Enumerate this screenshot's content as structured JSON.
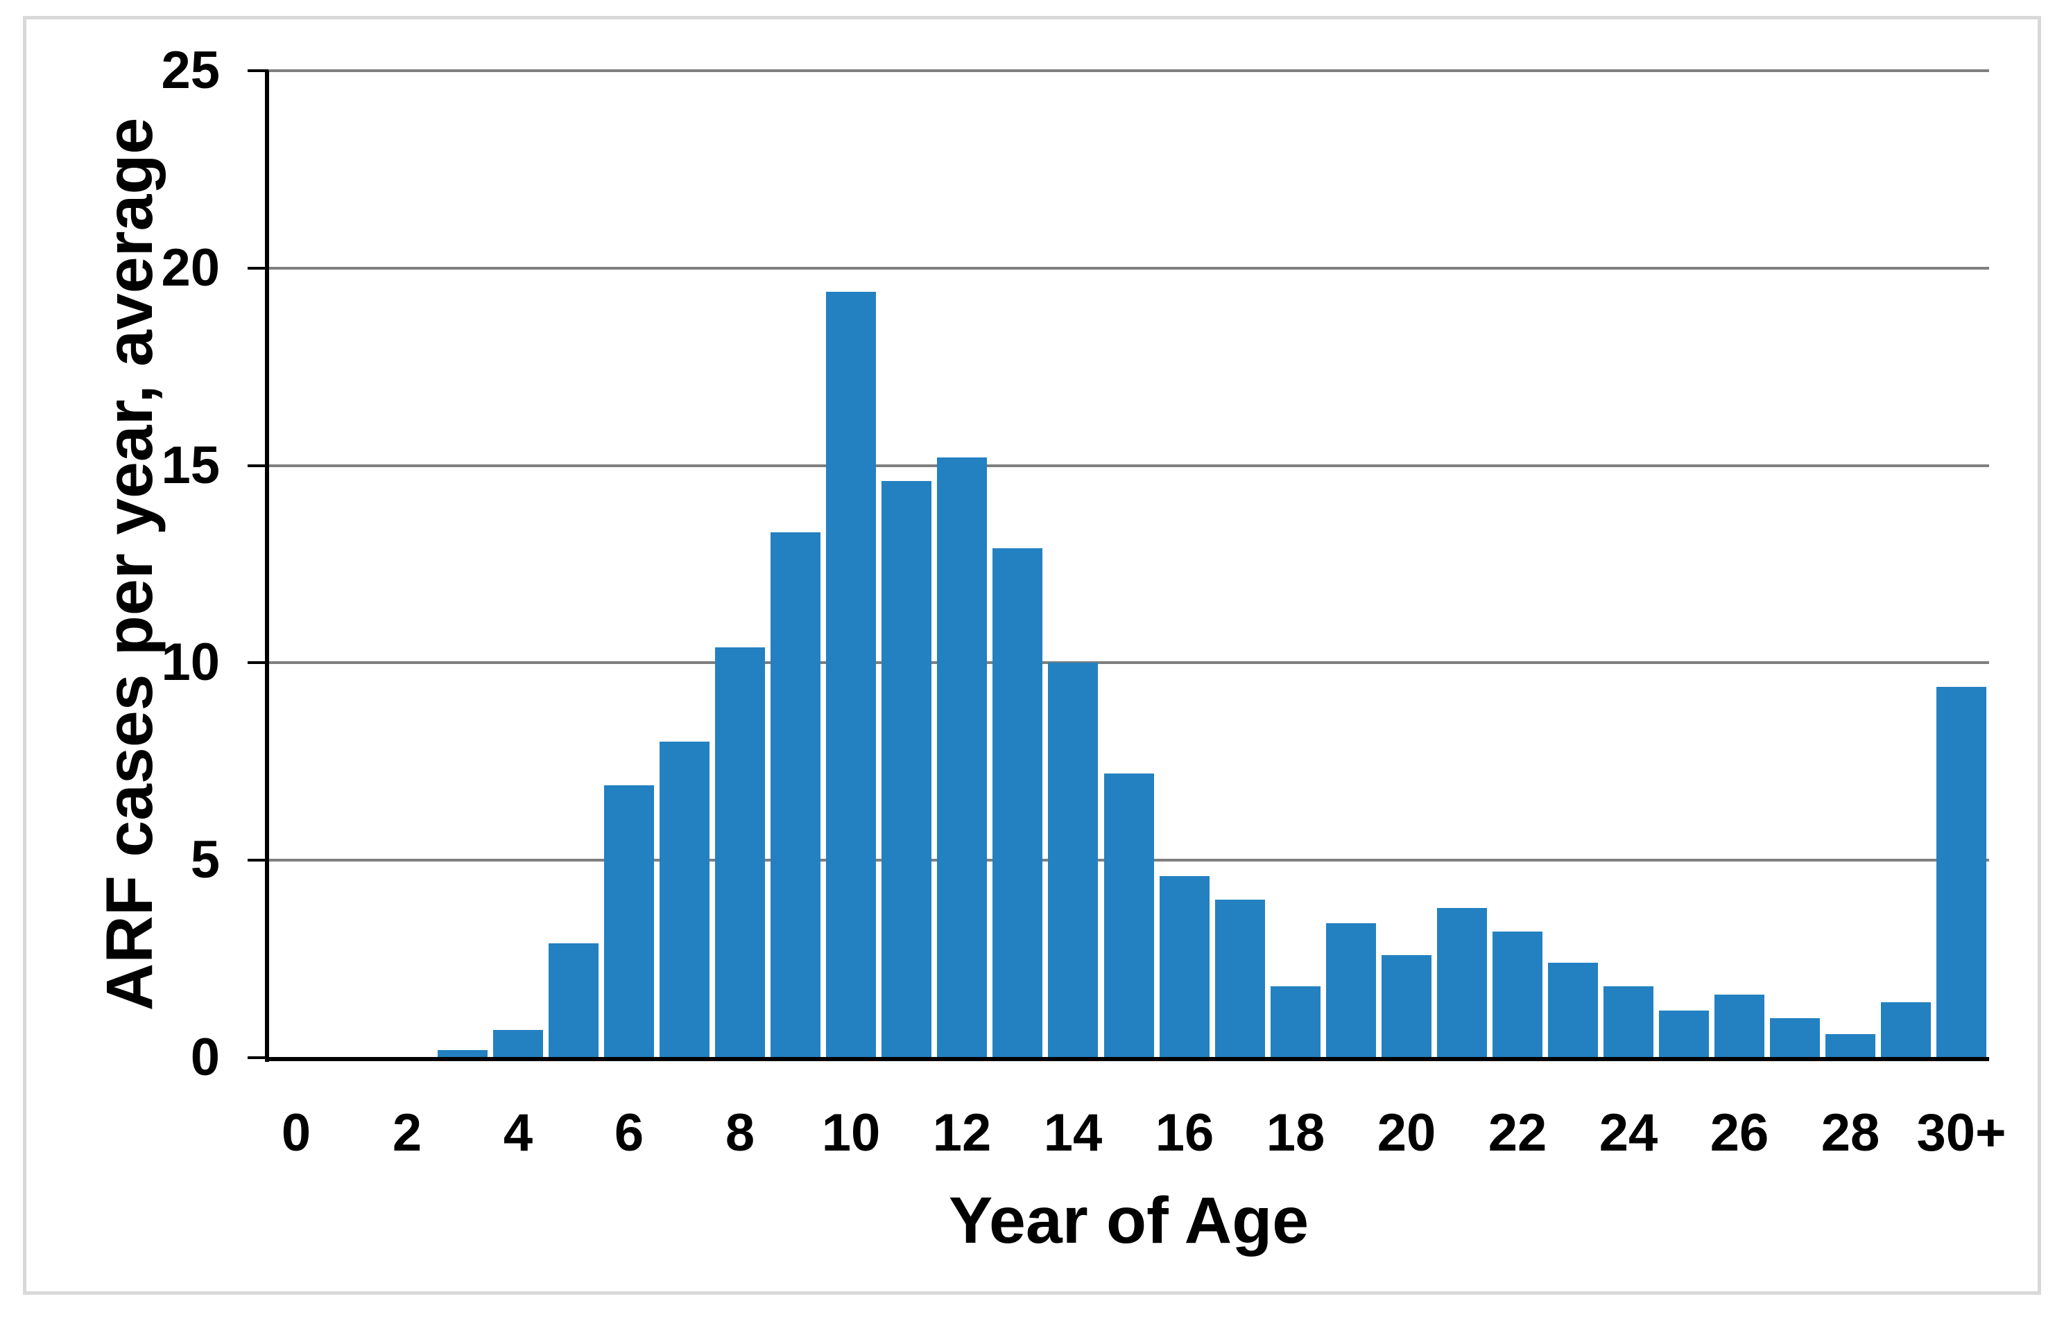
{
  "figure": {
    "background_color": "#ffffff",
    "border_color": "#d9d9d9"
  },
  "chart_data": {
    "type": "bar",
    "title": "",
    "xlabel": "Year of Age",
    "ylabel": "ARF cases per year, average",
    "categories": [
      "0",
      "1",
      "2",
      "3",
      "4",
      "5",
      "6",
      "7",
      "8",
      "9",
      "10",
      "11",
      "12",
      "13",
      "14",
      "15",
      "16",
      "17",
      "18",
      "19",
      "20",
      "21",
      "22",
      "23",
      "24",
      "25",
      "26",
      "27",
      "28",
      "29",
      "30+"
    ],
    "values": [
      0,
      0,
      0,
      0.2,
      0.7,
      2.9,
      6.9,
      8.0,
      10.4,
      13.3,
      19.4,
      14.6,
      15.2,
      12.9,
      10.0,
      7.2,
      4.6,
      4.0,
      1.8,
      3.4,
      2.6,
      3.8,
      3.2,
      2.4,
      1.8,
      1.2,
      1.6,
      1.0,
      0.6,
      1.4,
      9.4
    ],
    "x_tick_labels": [
      "0",
      "2",
      "4",
      "6",
      "8",
      "10",
      "12",
      "14",
      "16",
      "18",
      "20",
      "22",
      "24",
      "26",
      "28",
      "30+"
    ],
    "x_tick_label_every": 2,
    "y_ticks": [
      0,
      5,
      10,
      15,
      20,
      25
    ],
    "ylim": [
      0,
      25
    ],
    "bar_color": "#2381c1",
    "gridline_color": "#7f7f7f",
    "axis_color": "#000000",
    "grid": "horizontal-only",
    "legend": "none"
  }
}
